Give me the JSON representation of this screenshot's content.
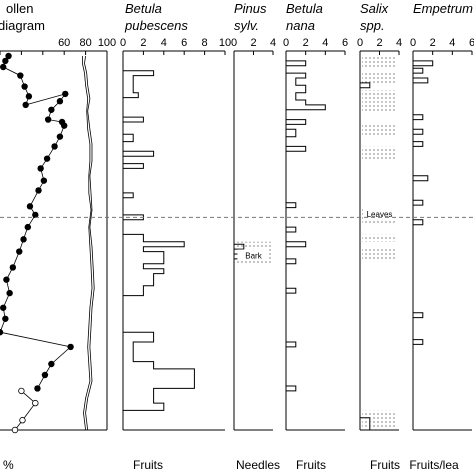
{
  "chart_data": {
    "type": "line",
    "pollen": {
      "title_lines": [
        "ollen",
        "diagram"
      ],
      "ticks": [
        "60",
        "80",
        "100"
      ],
      "unit": "%",
      "xlim": [
        0,
        100
      ],
      "dots": [
        [
          8,
          0
        ],
        [
          5,
          4
        ],
        [
          3,
          9
        ],
        [
          19,
          16
        ],
        [
          23,
          25
        ],
        [
          27,
          33
        ],
        [
          24,
          40
        ],
        [
          61,
          31
        ],
        [
          56,
          37
        ],
        [
          48,
          44
        ],
        [
          45,
          52
        ],
        [
          58,
          54
        ],
        [
          60,
          57
        ],
        [
          56,
          66
        ],
        [
          51,
          74
        ],
        [
          44,
          84
        ],
        [
          38,
          92
        ],
        [
          41,
          102
        ],
        [
          36,
          110
        ],
        [
          28,
          123
        ],
        [
          33,
          130
        ],
        [
          26,
          140
        ],
        [
          22,
          150
        ],
        [
          18,
          160
        ],
        [
          12,
          173
        ],
        [
          6,
          183
        ],
        [
          9,
          194
        ],
        [
          3,
          206
        ],
        [
          5,
          215
        ],
        [
          0,
          226
        ],
        [
          66,
          238
        ],
        [
          48,
          252
        ],
        [
          42,
          261
        ],
        [
          35,
          272
        ]
      ],
      "open_dots": [
        [
          20,
          274
        ],
        [
          33,
          284
        ],
        [
          21,
          298
        ],
        [
          14,
          306
        ]
      ],
      "curve_a": [
        [
          80,
          0
        ],
        [
          79,
          6
        ],
        [
          81,
          14
        ],
        [
          82,
          24
        ],
        [
          84,
          35
        ],
        [
          82,
          45
        ],
        [
          84,
          60
        ],
        [
          86,
          72
        ],
        [
          86,
          86
        ],
        [
          84,
          98
        ],
        [
          85,
          112
        ],
        [
          86,
          126
        ],
        [
          84,
          140
        ],
        [
          86,
          156
        ],
        [
          87,
          172
        ],
        [
          88,
          190
        ],
        [
          86,
          206
        ],
        [
          85,
          222
        ],
        [
          84,
          238
        ],
        [
          85,
          252
        ],
        [
          86,
          266
        ],
        [
          82,
          280
        ],
        [
          80,
          292
        ],
        [
          82,
          306
        ]
      ],
      "curve_b": [
        [
          77,
          0
        ],
        [
          77,
          6
        ],
        [
          79,
          14
        ],
        [
          80,
          24
        ],
        [
          82,
          35
        ],
        [
          81,
          45
        ],
        [
          82,
          60
        ],
        [
          84,
          72
        ],
        [
          84,
          86
        ],
        [
          83,
          98
        ],
        [
          83,
          112
        ],
        [
          85,
          126
        ],
        [
          83,
          140
        ],
        [
          84,
          156
        ],
        [
          85,
          172
        ],
        [
          86,
          190
        ],
        [
          84,
          206
        ],
        [
          83,
          222
        ],
        [
          82,
          238
        ],
        [
          83,
          252
        ],
        [
          84,
          266
        ],
        [
          80,
          280
        ],
        [
          78,
          292
        ],
        [
          80,
          306
        ]
      ]
    },
    "panels": [
      {
        "title_lines": [
          "Betula",
          "pubescens"
        ],
        "ticks": [
          "0",
          "2",
          "4",
          "6",
          "8",
          "10"
        ],
        "xlim": [
          0,
          10
        ],
        "unit": "Fruits",
        "fill": "none",
        "annotation": "",
        "steps": [
          [
            0,
            0
          ],
          [
            0,
            12
          ],
          [
            3,
            12
          ],
          [
            3,
            16
          ],
          [
            1,
            16
          ],
          [
            1,
            30
          ],
          [
            1.5,
            30
          ],
          [
            1.5,
            34
          ],
          [
            0,
            34
          ],
          [
            0,
            50
          ],
          [
            2,
            50
          ],
          [
            2,
            54
          ],
          [
            0,
            54
          ],
          [
            0,
            64
          ],
          [
            1,
            64
          ],
          [
            1,
            70
          ],
          [
            0,
            70
          ],
          [
            0,
            78
          ],
          [
            3,
            78
          ],
          [
            3,
            82
          ],
          [
            0,
            82
          ],
          [
            0,
            88
          ],
          [
            2,
            88
          ],
          [
            2,
            92
          ],
          [
            0,
            92
          ],
          [
            0,
            112
          ],
          [
            1,
            112
          ],
          [
            1,
            116
          ],
          [
            0,
            116
          ],
          [
            0,
            130
          ],
          [
            2,
            130
          ],
          [
            2,
            134
          ],
          [
            0,
            134
          ],
          [
            0,
            146
          ],
          [
            2,
            146
          ],
          [
            2,
            152
          ],
          [
            6,
            152
          ],
          [
            6,
            156
          ],
          [
            2,
            156
          ],
          [
            2,
            160
          ],
          [
            4,
            160
          ],
          [
            4,
            170
          ],
          [
            2,
            170
          ],
          [
            2,
            174
          ],
          [
            4,
            174
          ],
          [
            4,
            178
          ],
          [
            3,
            178
          ],
          [
            3,
            188
          ],
          [
            2,
            188
          ],
          [
            2,
            196
          ],
          [
            0,
            196
          ],
          [
            0,
            226
          ],
          [
            3,
            226
          ],
          [
            3,
            234
          ],
          [
            1,
            234
          ],
          [
            1,
            250
          ],
          [
            3,
            250
          ],
          [
            3,
            256
          ],
          [
            7,
            256
          ],
          [
            7,
            272
          ],
          [
            3,
            272
          ],
          [
            3,
            284
          ],
          [
            4,
            284
          ],
          [
            4,
            290
          ],
          [
            0,
            290
          ],
          [
            0,
            306
          ]
        ]
      },
      {
        "title_lines": [
          "Pinus",
          "sylv."
        ],
        "ticks": [
          "0",
          "2",
          "4"
        ],
        "xlim": [
          0,
          4
        ],
        "unit": "Needles",
        "fill": "dots",
        "annotation": "Bark",
        "annotation_y": 164,
        "steps": [
          [
            0,
            0
          ],
          [
            0,
            154
          ],
          [
            1,
            154
          ],
          [
            1,
            158
          ],
          [
            0,
            158
          ],
          [
            0,
            162
          ],
          [
            2,
            162
          ],
          [
            2,
            166
          ],
          [
            0,
            166
          ],
          [
            0,
            306
          ]
        ]
      },
      {
        "title_lines": [
          "Betula",
          "nana"
        ],
        "ticks": [
          "0",
          "2",
          "4",
          "6"
        ],
        "xlim": [
          0,
          6
        ],
        "unit": "Fruits",
        "fill": "none",
        "annotation": "",
        "steps": [
          [
            0,
            0
          ],
          [
            0,
            4
          ],
          [
            2,
            4
          ],
          [
            2,
            8
          ],
          [
            0,
            8
          ],
          [
            0,
            14
          ],
          [
            2,
            14
          ],
          [
            2,
            18
          ],
          [
            1,
            18
          ],
          [
            1,
            24
          ],
          [
            2,
            24
          ],
          [
            2,
            30
          ],
          [
            1,
            30
          ],
          [
            1,
            36
          ],
          [
            2,
            36
          ],
          [
            2,
            40
          ],
          [
            4,
            40
          ],
          [
            4,
            44
          ],
          [
            0,
            44
          ],
          [
            0,
            52
          ],
          [
            2,
            52
          ],
          [
            2,
            56
          ],
          [
            0,
            56
          ],
          [
            0,
            60
          ],
          [
            1,
            60
          ],
          [
            1,
            66
          ],
          [
            0,
            66
          ],
          [
            0,
            74
          ],
          [
            2,
            74
          ],
          [
            2,
            78
          ],
          [
            0,
            78
          ],
          [
            0,
            120
          ],
          [
            1,
            120
          ],
          [
            1,
            124
          ],
          [
            0,
            124
          ],
          [
            0,
            140
          ],
          [
            1,
            140
          ],
          [
            1,
            144
          ],
          [
            0,
            144
          ],
          [
            0,
            152
          ],
          [
            2,
            152
          ],
          [
            2,
            156
          ],
          [
            0,
            156
          ],
          [
            0,
            166
          ],
          [
            1,
            166
          ],
          [
            1,
            170
          ],
          [
            0,
            170
          ],
          [
            0,
            190
          ],
          [
            1,
            190
          ],
          [
            1,
            194
          ],
          [
            0,
            194
          ],
          [
            0,
            234
          ],
          [
            1,
            234
          ],
          [
            1,
            238
          ],
          [
            0,
            238
          ],
          [
            0,
            270
          ],
          [
            1,
            270
          ],
          [
            1,
            274
          ],
          [
            0,
            274
          ],
          [
            0,
            306
          ]
        ]
      },
      {
        "title_lines": [
          "Salix",
          "spp."
        ],
        "ticks": [
          "0",
          "2",
          "4"
        ],
        "xlim": [
          0,
          4
        ],
        "unit": "Fruits",
        "fill": "dots",
        "annotation": "Leaves",
        "annotation_y": 130,
        "steps": [
          [
            0,
            0
          ],
          [
            0,
            22
          ],
          [
            1,
            22
          ],
          [
            1,
            26
          ],
          [
            0,
            26
          ],
          [
            0,
            296
          ],
          [
            1,
            296
          ],
          [
            1,
            306
          ],
          [
            0,
            306
          ]
        ],
        "fill_bands": [
          [
            0,
            10
          ],
          [
            14,
            24
          ],
          [
            28,
            38
          ],
          [
            40,
            46
          ],
          [
            56,
            66
          ],
          [
            74,
            86
          ],
          [
            124,
            138
          ],
          [
            146,
            152
          ],
          [
            158,
            168
          ],
          [
            290,
            306
          ]
        ]
      },
      {
        "title_lines": [
          "Empetrum"
        ],
        "ticks": [
          "0",
          "2",
          "4",
          "6"
        ],
        "xlim": [
          0,
          6
        ],
        "unit": "Fruits/lea",
        "fill": "none",
        "annotation": "",
        "steps": [
          [
            0,
            0
          ],
          [
            0,
            4
          ],
          [
            2,
            4
          ],
          [
            2,
            8
          ],
          [
            0,
            8
          ],
          [
            0,
            10
          ],
          [
            1,
            10
          ],
          [
            1,
            14
          ],
          [
            0,
            14
          ],
          [
            0,
            18
          ],
          [
            1.5,
            18
          ],
          [
            1.5,
            22
          ],
          [
            0,
            22
          ],
          [
            0,
            48
          ],
          [
            1,
            48
          ],
          [
            1,
            52
          ],
          [
            0,
            52
          ],
          [
            0,
            60
          ],
          [
            1,
            60
          ],
          [
            1,
            64
          ],
          [
            0,
            64
          ],
          [
            0,
            70
          ],
          [
            1,
            70
          ],
          [
            1,
            74
          ],
          [
            0,
            74
          ],
          [
            0,
            98
          ],
          [
            1.5,
            98
          ],
          [
            1.5,
            102
          ],
          [
            0,
            102
          ],
          [
            0,
            118
          ],
          [
            1,
            118
          ],
          [
            1,
            122
          ],
          [
            0,
            122
          ],
          [
            0,
            134
          ],
          [
            1,
            134
          ],
          [
            1,
            138
          ],
          [
            0,
            138
          ],
          [
            0,
            210
          ],
          [
            1,
            210
          ],
          [
            1,
            214
          ],
          [
            0,
            214
          ],
          [
            0,
            232
          ],
          [
            1,
            232
          ],
          [
            1,
            236
          ],
          [
            0,
            236
          ],
          [
            0,
            306
          ]
        ]
      }
    ],
    "zone_boundary_depth": 132
  }
}
